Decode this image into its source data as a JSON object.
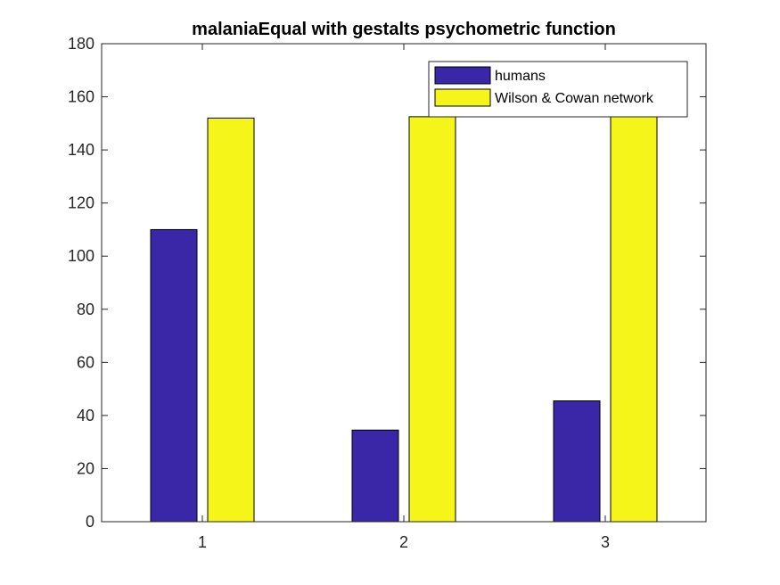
{
  "chart_data": {
    "type": "bar",
    "title": "malaniaEqual with gestalts psychometric function",
    "xlabel": "",
    "ylabel": "",
    "categories": [
      "1",
      "2",
      "3"
    ],
    "ylim": [
      0,
      180
    ],
    "yticks": [
      "0",
      "20",
      "40",
      "60",
      "80",
      "100",
      "120",
      "140",
      "160",
      "180"
    ],
    "grid": false,
    "legend_position": "top-right",
    "series": [
      {
        "name": "humans",
        "values": [
          110,
          34.5,
          45.5
        ],
        "color": "#3A27A8"
      },
      {
        "name": "Wilson & Cowan network",
        "values": [
          152,
          152.5,
          155
        ],
        "color": "#F5F51A"
      }
    ]
  }
}
